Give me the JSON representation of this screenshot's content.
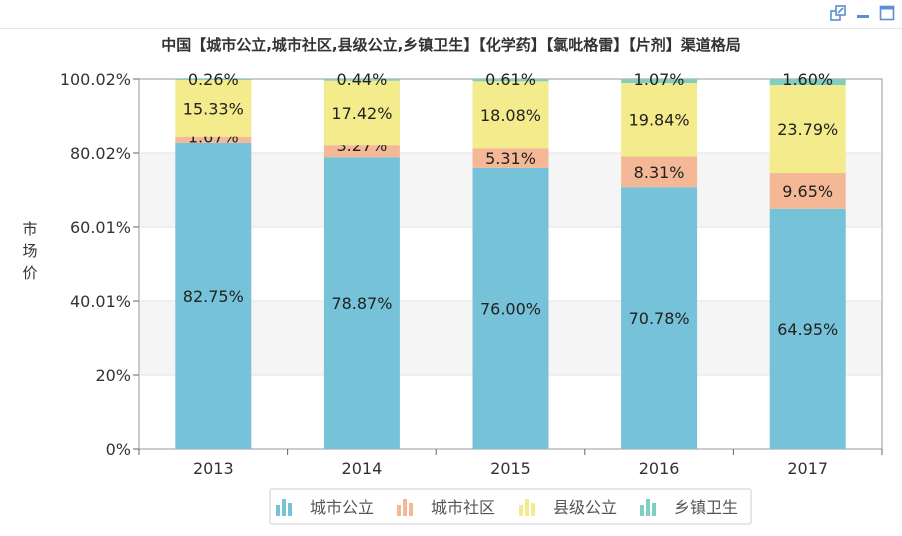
{
  "toolbar": {
    "icons": [
      "export-icon",
      "minimize-icon",
      "maximize-icon"
    ],
    "color": "#5b8fcf"
  },
  "chart_data": {
    "type": "bar",
    "stacked": true,
    "title": "中国【城市公立,城市社区,县级公立,乡镇卫生】【化学药】【氯吡格雷】【片剂】渠道格局",
    "ylabel": "市场价",
    "xlabel": "",
    "categories": [
      "2013",
      "2014",
      "2015",
      "2016",
      "2017"
    ],
    "ylim": [
      0,
      100.02
    ],
    "yticks": [
      "0%",
      "20%",
      "40.01%",
      "60.01%",
      "80.02%",
      "100.02%"
    ],
    "series": [
      {
        "name": "城市公立",
        "color": "#76c2d9",
        "values": [
          82.75,
          78.87,
          76.0,
          70.78,
          64.95
        ]
      },
      {
        "name": "城市社区",
        "color": "#f5b896",
        "values": [
          1.67,
          3.27,
          5.31,
          8.31,
          9.65
        ]
      },
      {
        "name": "县级公立",
        "color": "#f3eb8c",
        "values": [
          15.33,
          17.42,
          18.08,
          19.84,
          23.79
        ]
      },
      {
        "name": "乡镇卫生",
        "color": "#80cfc0",
        "values": [
          0.26,
          0.44,
          0.61,
          1.07,
          1.6
        ]
      }
    ],
    "labels": [
      [
        "82.75%",
        "78.87%",
        "76.00%",
        "70.78%",
        "64.95%"
      ],
      [
        "1.67%",
        "3.27%",
        "5.31%",
        "8.31%",
        "9.65%"
      ],
      [
        "15.33%",
        "17.42%",
        "18.08%",
        "19.84%",
        "23.79%"
      ],
      [
        "0.26%",
        "0.44%",
        "0.61%",
        "1.07%",
        "1.60%"
      ]
    ],
    "legend_position": "bottom",
    "grid": true
  }
}
